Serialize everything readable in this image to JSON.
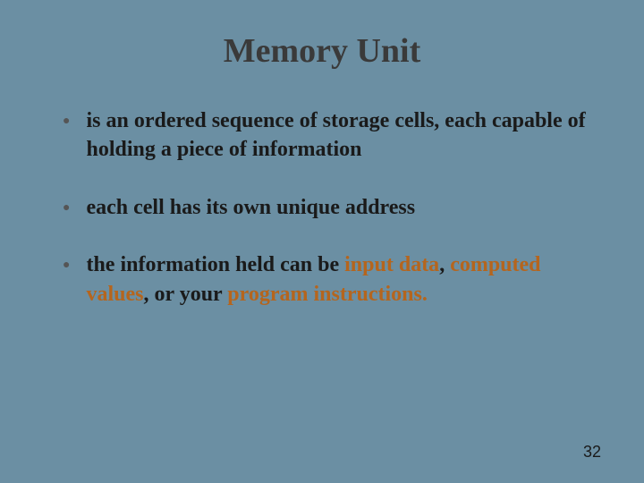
{
  "slide": {
    "title": "Memory Unit",
    "bullets": [
      {
        "parts": [
          {
            "text": "is an ordered sequence of storage cells, each capable of holding a piece of information",
            "highlight": false
          }
        ]
      },
      {
        "parts": [
          {
            "text": "each cell has its own unique address",
            "highlight": false
          }
        ]
      },
      {
        "parts": [
          {
            "text": "the information held can be ",
            "highlight": false
          },
          {
            "text": "input data",
            "highlight": true
          },
          {
            "text": ", ",
            "highlight": false
          },
          {
            "text": "computed values",
            "highlight": true
          },
          {
            "text": ", or your ",
            "highlight": false
          },
          {
            "text": "program instructions.",
            "highlight": true
          }
        ]
      }
    ],
    "page_number": "32"
  },
  "colors": {
    "background": "#6b8fa3",
    "title_text": "#3a3a3a",
    "body_text": "#1a1a1a",
    "highlight": "#b5651d",
    "bullet_marker": "#555555"
  }
}
